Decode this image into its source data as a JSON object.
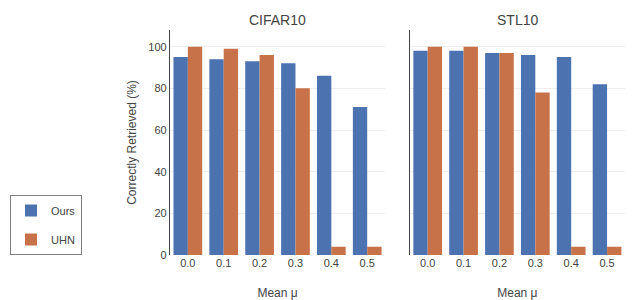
{
  "chart_data": [
    {
      "type": "bar",
      "title": "CIFAR10",
      "categories": [
        "0.0",
        "0.1",
        "0.2",
        "0.3",
        "0.4",
        "0.5"
      ],
      "series": [
        {
          "name": "Ours",
          "color": "#4c72b0",
          "values": [
            95,
            94,
            93,
            92,
            86,
            71
          ]
        },
        {
          "name": "UHN",
          "color": "#c8724a",
          "values": [
            100,
            99,
            96,
            80,
            4,
            4
          ]
        }
      ],
      "xlabel": "Mean μ",
      "ylabel": "Correctly Retrieved (%)",
      "ylim": [
        0,
        108
      ],
      "yticks": [
        0,
        20,
        40,
        60,
        80,
        100
      ],
      "grid": true,
      "legend": "lower left"
    },
    {
      "type": "bar",
      "title": "STL10",
      "categories": [
        "0.0",
        "0.1",
        "0.2",
        "0.3",
        "0.4",
        "0.5"
      ],
      "series": [
        {
          "name": "Ours",
          "color": "#4c72b0",
          "values": [
            98,
            98,
            97,
            96,
            95,
            82
          ]
        },
        {
          "name": "UHN",
          "color": "#c8724a",
          "values": [
            100,
            100,
            97,
            78,
            4,
            4
          ]
        }
      ],
      "xlabel": "Mean μ",
      "ylim": [
        0,
        108
      ],
      "yticks": [
        0,
        20,
        40,
        60,
        80,
        100
      ],
      "grid": true,
      "tick_labels": "x"
    }
  ]
}
